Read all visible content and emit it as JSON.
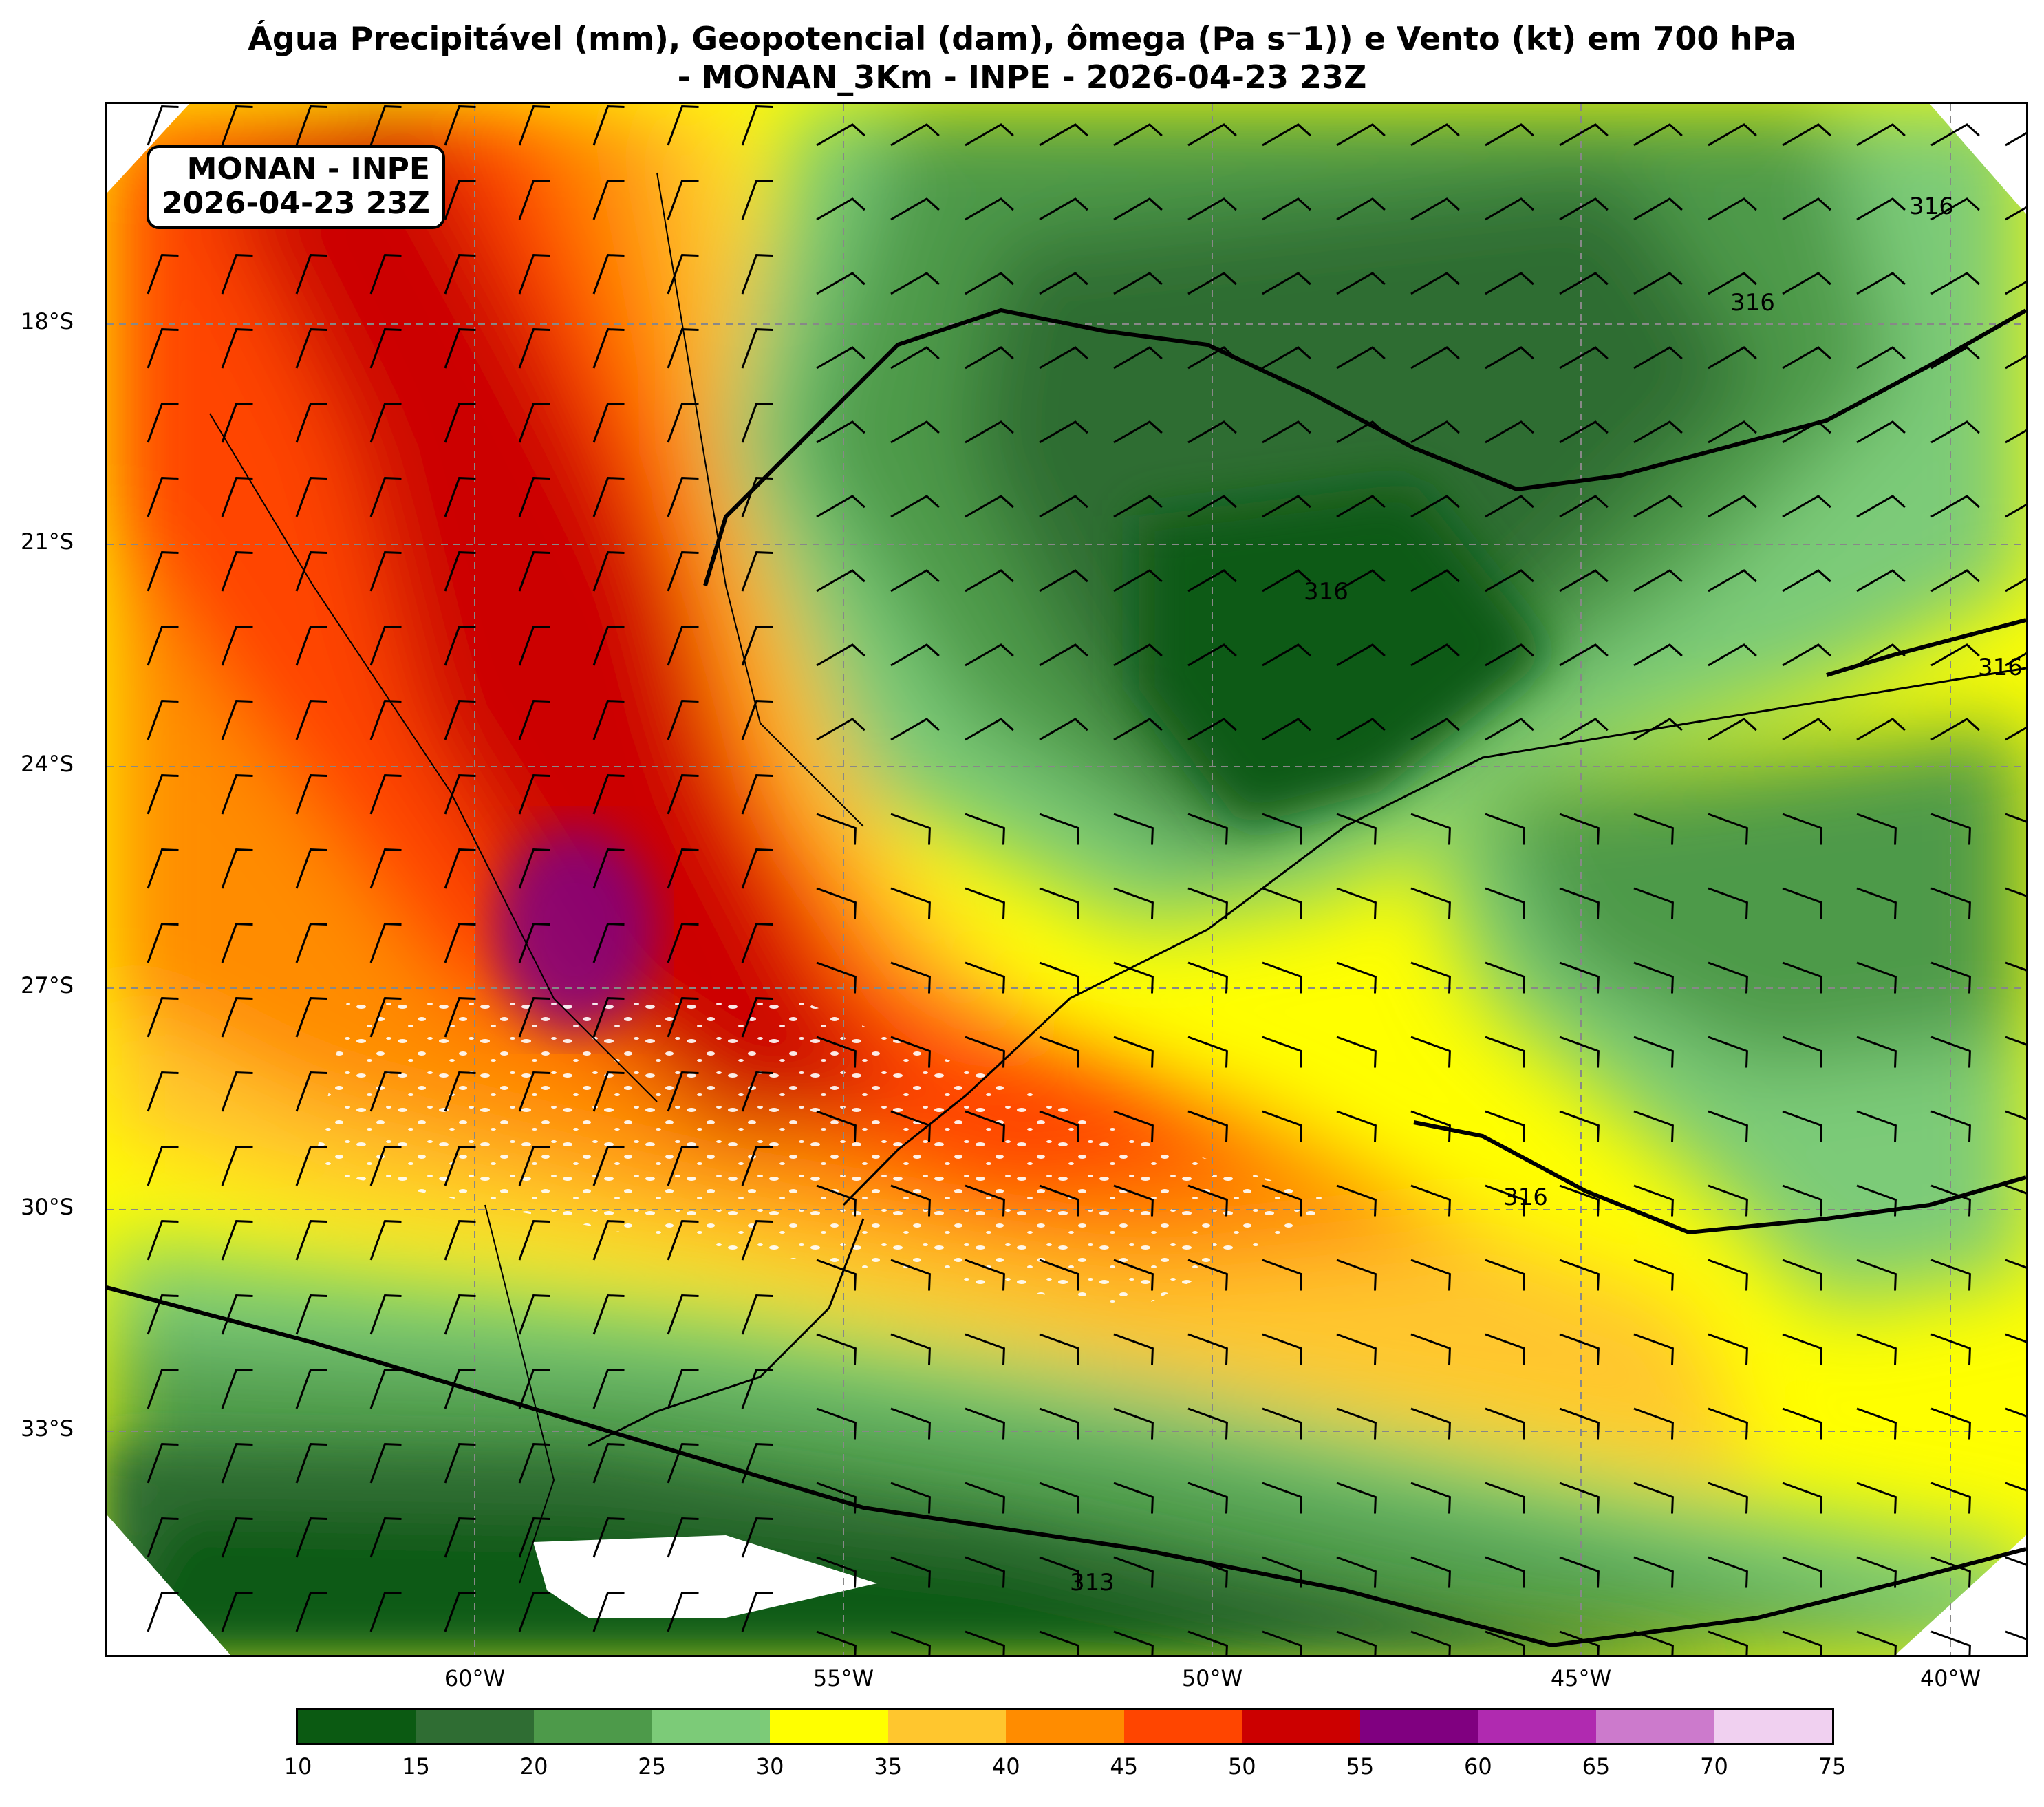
{
  "title": {
    "line1": "Água Precipitável (mm), Geopotencial (dam), ômega (Pa s⁻1)) e Vento (kt) em 700 hPa",
    "line2": "- MONAN_3Km - INPE - 2026-04-23 23Z"
  },
  "stamp": {
    "line1": "MONAN - INPE",
    "line2": "2026-04-23 23Z"
  },
  "lat_labels": [
    "18°S",
    "21°S",
    "24°S",
    "27°S",
    "30°S",
    "33°S"
  ],
  "lon_labels": [
    "60°W",
    "55°W",
    "50°W",
    "45°W",
    "40°W"
  ],
  "contour_labels": [
    "316",
    "316",
    "316",
    "316",
    "316",
    "313"
  ],
  "colorbar": {
    "ticks": [
      "10",
      "15",
      "20",
      "25",
      "30",
      "35",
      "40",
      "45",
      "50",
      "55",
      "60",
      "65",
      "70",
      "75"
    ],
    "colors": [
      "#0b5a12",
      "#2f6d33",
      "#4d9a4a",
      "#7ccb78",
      "#ffff00",
      "#ffc62e",
      "#ff8c00",
      "#ff4500",
      "#cc0000",
      "#800080",
      "#b02ab0",
      "#cc7acc",
      "#f0d0f0"
    ]
  }
}
